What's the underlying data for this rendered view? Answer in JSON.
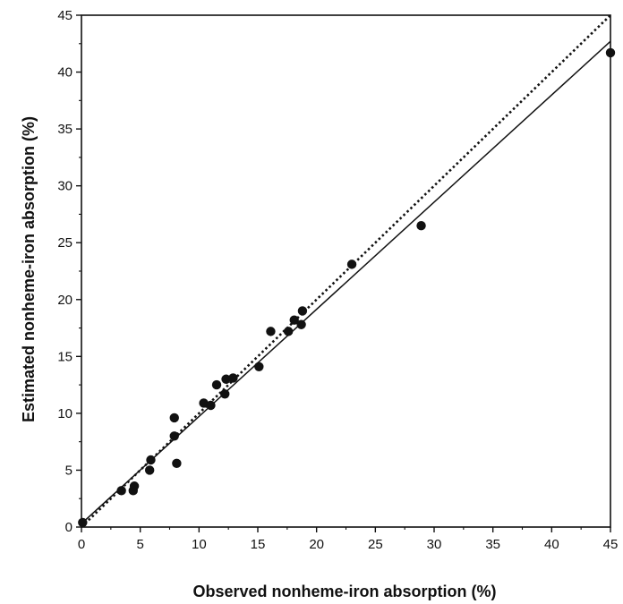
{
  "chart_data": {
    "type": "scatter",
    "xlabel": "Observed nonheme-iron absorption (%)",
    "ylabel": "Estimated nonheme-iron absorption (%)",
    "xlim": [
      0,
      45
    ],
    "ylim": [
      0,
      45
    ],
    "xticks": [
      0,
      5,
      10,
      15,
      20,
      25,
      30,
      35,
      40,
      45
    ],
    "yticks": [
      0,
      5,
      10,
      15,
      20,
      25,
      30,
      35,
      40,
      45
    ],
    "grid": false,
    "series": [
      {
        "marker": "filled-circle",
        "color": "#111111",
        "points": [
          [
            0.1,
            0.4
          ],
          [
            3.4,
            3.2
          ],
          [
            4.4,
            3.2
          ],
          [
            4.5,
            3.6
          ],
          [
            5.8,
            5.0
          ],
          [
            5.9,
            5.9
          ],
          [
            7.9,
            9.6
          ],
          [
            7.9,
            8.0
          ],
          [
            8.1,
            5.6
          ],
          [
            10.4,
            10.9
          ],
          [
            11.0,
            10.7
          ],
          [
            11.5,
            12.5
          ],
          [
            12.2,
            11.7
          ],
          [
            12.3,
            13.0
          ],
          [
            12.9,
            13.1
          ],
          [
            15.1,
            14.1
          ],
          [
            16.1,
            17.2
          ],
          [
            17.6,
            17.2
          ],
          [
            18.1,
            18.2
          ],
          [
            18.7,
            17.8
          ],
          [
            18.8,
            19.0
          ],
          [
            23.0,
            23.1
          ],
          [
            28.9,
            26.5
          ],
          [
            45.0,
            41.7
          ]
        ]
      }
    ],
    "lines": [
      {
        "style": "dotted",
        "color": "#111111",
        "from": [
          0,
          0
        ],
        "to": [
          45,
          45
        ]
      },
      {
        "style": "solid",
        "color": "#111111",
        "from": [
          0,
          0.3
        ],
        "to": [
          45,
          42.7
        ]
      }
    ]
  }
}
